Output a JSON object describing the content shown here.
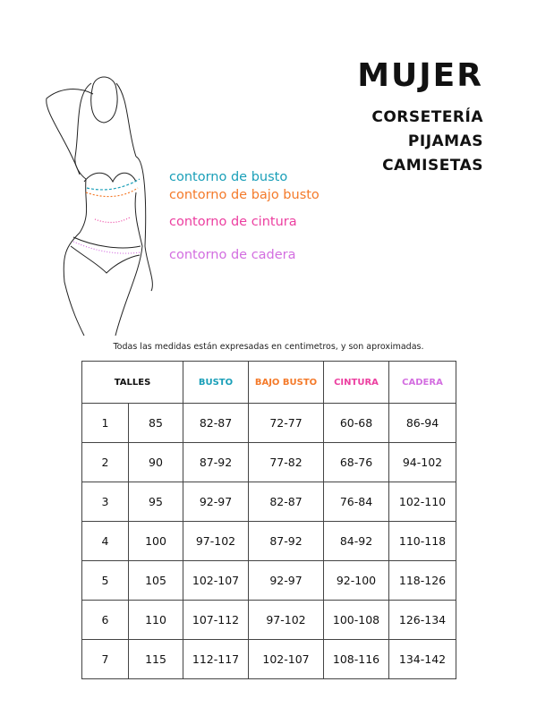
{
  "header": {
    "title": "MUJER",
    "categories": [
      "CORSETERÍA",
      "PIJAMAS",
      "CAMISETAS"
    ]
  },
  "figure_labels": [
    {
      "text": "contorno de busto",
      "color": "#1a9fb8"
    },
    {
      "text": "contorno de bajo busto",
      "color": "#f47a2a"
    },
    {
      "text": "contorno de cintura",
      "color": "#ec3fa0"
    },
    {
      "text": "contorno de cadera",
      "color": "#d36ee0"
    }
  ],
  "note": "Todas las medidas están expresadas en centimetros, y son aproximadas.",
  "table": {
    "headers": [
      {
        "label": "TALLES",
        "color": "#111111"
      },
      {
        "label": "BUSTO",
        "color": "#1a9fb8"
      },
      {
        "label": "BAJO BUSTO",
        "color": "#f47a2a"
      },
      {
        "label": "CINTURA",
        "color": "#ec3fa0"
      },
      {
        "label": "CADERA",
        "color": "#d36ee0"
      }
    ],
    "rows": [
      [
        "1",
        "85",
        "82-87",
        "72-77",
        "60-68",
        "86-94"
      ],
      [
        "2",
        "90",
        "87-92",
        "77-82",
        "68-76",
        "94-102"
      ],
      [
        "3",
        "95",
        "92-97",
        "82-87",
        "76-84",
        "102-110"
      ],
      [
        "4",
        "100",
        "97-102",
        "87-92",
        "84-92",
        "110-118"
      ],
      [
        "5",
        "105",
        "102-107",
        "92-97",
        "92-100",
        "118-126"
      ],
      [
        "6",
        "110",
        "107-112",
        "97-102",
        "100-108",
        "126-134"
      ],
      [
        "7",
        "115",
        "112-117",
        "102-107",
        "108-116",
        "134-142"
      ]
    ]
  }
}
